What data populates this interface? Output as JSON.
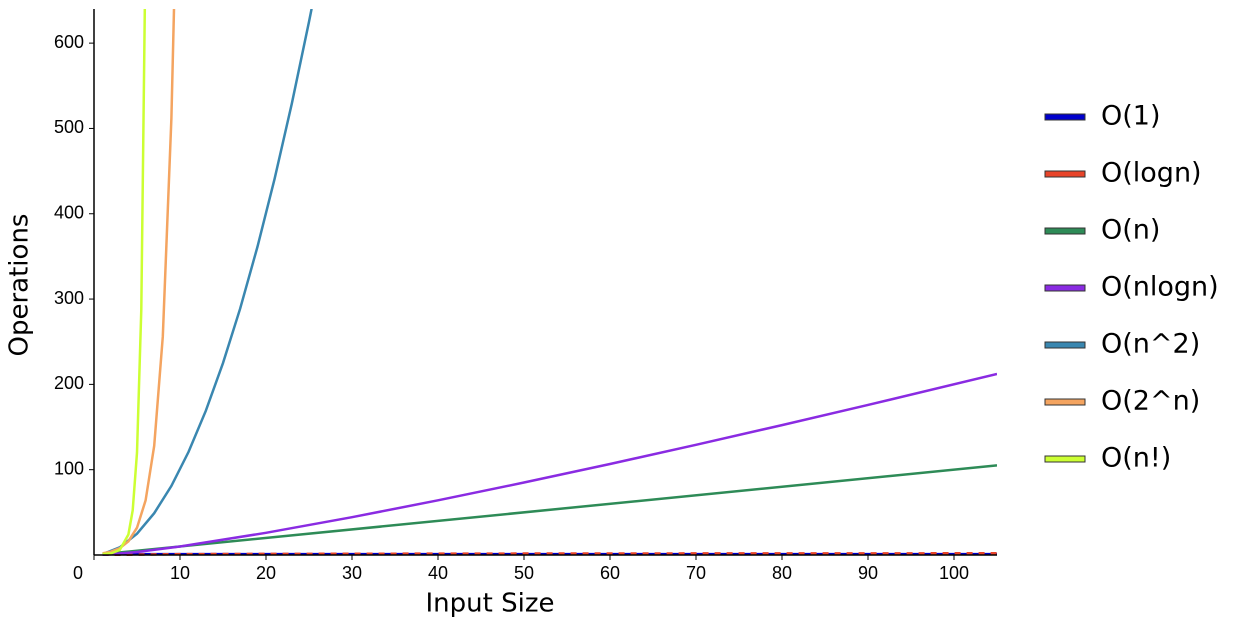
{
  "chart_data": {
    "type": "line",
    "xlabel": "Input Size",
    "ylabel": "Operations",
    "xlim": [
      0,
      105
    ],
    "ylim": [
      0,
      640
    ],
    "xticks": [
      0,
      10,
      20,
      30,
      40,
      50,
      60,
      70,
      80,
      90,
      100
    ],
    "yticks": [
      100,
      200,
      300,
      400,
      500,
      600
    ],
    "legend": "right",
    "series": [
      {
        "name": "O(1)",
        "color": "#0000cc",
        "x": [
          1,
          105
        ],
        "values": [
          1,
          1
        ]
      },
      {
        "name": "O(logn)",
        "color": "#e8442a",
        "x": [
          1,
          10,
          20,
          40,
          60,
          80,
          105
        ],
        "values": [
          0,
          1,
          1.3,
          1.6,
          1.78,
          1.9,
          2.02
        ]
      },
      {
        "name": "O(n)",
        "color": "#2e8b57",
        "x": [
          1,
          105
        ],
        "values": [
          1,
          105
        ]
      },
      {
        "name": "O(nlogn)",
        "color": "#8a2be2",
        "x": [
          1,
          5,
          10,
          20,
          30,
          40,
          50,
          60,
          70,
          80,
          90,
          105
        ],
        "values": [
          0,
          3.49,
          10,
          26.02,
          44.31,
          64.08,
          84.95,
          106.69,
          129.16,
          152.25,
          175.88,
          212.22
        ]
      },
      {
        "name": "O(n^2)",
        "color": "#3a87b0",
        "x": [
          1,
          3,
          5,
          7,
          9,
          11,
          13,
          15,
          17,
          19,
          21,
          23,
          25,
          25.3
        ],
        "values": [
          1,
          9,
          25,
          49,
          81,
          121,
          169,
          225,
          289,
          361,
          441,
          529,
          625,
          640.09
        ]
      },
      {
        "name": "O(2^n)",
        "color": "#f4a460",
        "x": [
          1,
          2,
          3,
          4,
          5,
          6,
          7,
          8,
          9,
          9.5
        ],
        "values": [
          2,
          4,
          8,
          16,
          32,
          64,
          128,
          256,
          512,
          724.08
        ]
      },
      {
        "name": "O(n!)",
        "color": "#ccff33",
        "x": [
          1,
          2,
          3,
          4,
          4.5,
          5,
          5.5,
          6
        ],
        "values": [
          1,
          2,
          6,
          24,
          52.34,
          120,
          287.89,
          720
        ]
      }
    ]
  }
}
